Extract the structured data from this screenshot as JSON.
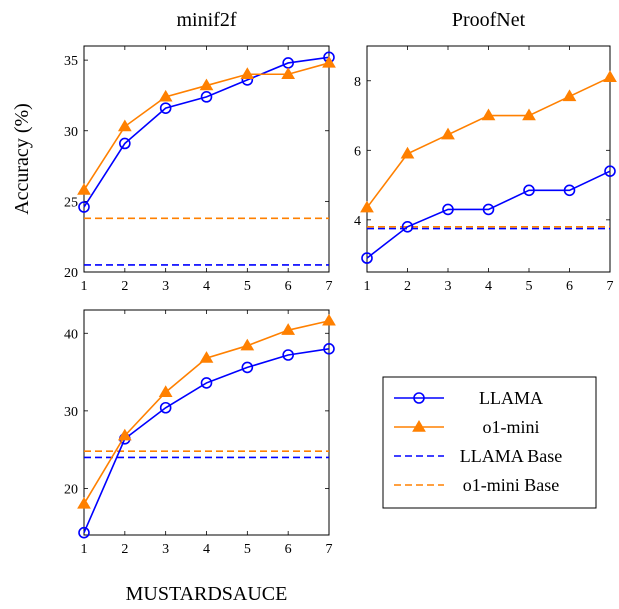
{
  "ylabel": "Accuracy (%)",
  "colors": {
    "llama": "#0000ff",
    "o1mini": "#ff8000"
  },
  "legend": {
    "items": [
      {
        "label": "LLAMA",
        "style": "solid-circle",
        "color": "#0000ff"
      },
      {
        "label": "o1-mini",
        "style": "solid-triangle",
        "color": "#ff8000"
      },
      {
        "label": "LLAMA Base",
        "style": "dashed",
        "color": "#0000ff"
      },
      {
        "label": "o1-mini Base",
        "style": "dashed",
        "color": "#ff8000"
      }
    ]
  },
  "chart_data": [
    {
      "type": "line",
      "title": "minif2f",
      "x": [
        1,
        2,
        3,
        4,
        5,
        6,
        7
      ],
      "xlim": [
        1,
        7
      ],
      "ylim": [
        20,
        36
      ],
      "yticks": [
        20,
        25,
        30,
        35
      ],
      "series": [
        {
          "name": "LLAMA",
          "values": [
            24.6,
            29.1,
            31.6,
            32.4,
            33.6,
            34.8,
            35.2
          ]
        },
        {
          "name": "o1-mini",
          "values": [
            25.8,
            30.3,
            32.4,
            33.2,
            34.0,
            34.0,
            34.8
          ]
        },
        {
          "name": "LLAMA Base",
          "baseline": 20.5
        },
        {
          "name": "o1-mini Base",
          "baseline": 23.8
        }
      ]
    },
    {
      "type": "line",
      "title": "ProofNet",
      "x": [
        1,
        2,
        3,
        4,
        5,
        6,
        7
      ],
      "xlim": [
        1,
        7
      ],
      "ylim": [
        2.5,
        9.0
      ],
      "yticks": [
        4,
        6,
        8
      ],
      "series": [
        {
          "name": "LLAMA",
          "values": [
            2.9,
            3.8,
            4.3,
            4.3,
            4.85,
            4.85,
            5.4
          ]
        },
        {
          "name": "o1-mini",
          "values": [
            4.35,
            5.9,
            6.45,
            7.0,
            7.0,
            7.55,
            8.1
          ]
        },
        {
          "name": "LLAMA Base",
          "baseline": 3.75
        },
        {
          "name": "o1-mini Base",
          "baseline": 3.8
        }
      ]
    },
    {
      "type": "line",
      "title": "MUSTARDSAUCE",
      "x": [
        1,
        2,
        3,
        4,
        5,
        6,
        7
      ],
      "xlim": [
        1,
        7
      ],
      "ylim": [
        14,
        43
      ],
      "yticks": [
        20,
        30,
        40
      ],
      "series": [
        {
          "name": "LLAMA",
          "values": [
            14.3,
            26.4,
            30.4,
            33.6,
            35.6,
            37.2,
            38.0
          ]
        },
        {
          "name": "o1-mini",
          "values": [
            18.0,
            26.8,
            32.4,
            36.8,
            38.4,
            40.4,
            41.6
          ]
        },
        {
          "name": "LLAMA Base",
          "baseline": 24.0
        },
        {
          "name": "o1-mini Base",
          "baseline": 24.8
        }
      ]
    }
  ]
}
